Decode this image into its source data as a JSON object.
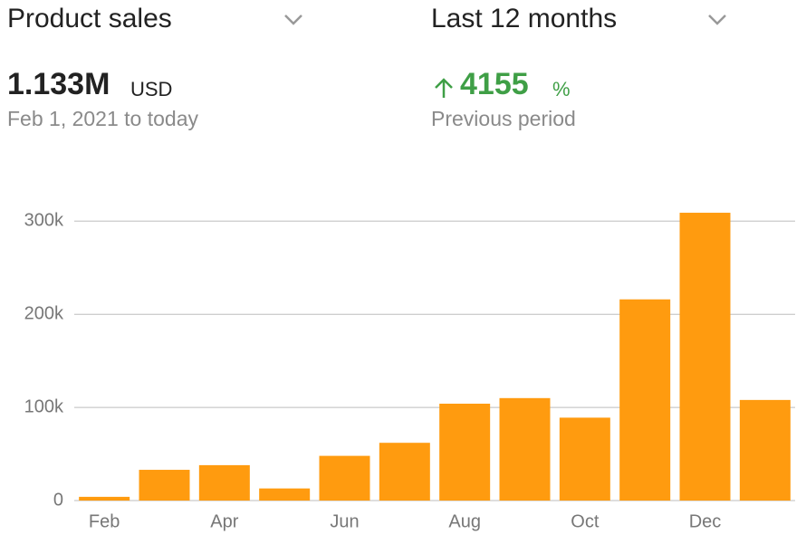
{
  "header": {
    "metric": "Product sales",
    "period": "Last 12 months"
  },
  "summary": {
    "total": "1.133M",
    "currency": "USD",
    "range": "Feb 1, 2021 to today",
    "change": "4155",
    "change_unit": "%",
    "comparison": "Previous period"
  },
  "chart_data": {
    "type": "bar",
    "categories": [
      "Feb",
      null,
      "Apr",
      null,
      "Jun",
      null,
      "Aug",
      null,
      "Oct",
      null,
      "Dec",
      null
    ],
    "values": [
      4000,
      33000,
      38000,
      13000,
      48000,
      62000,
      104000,
      110000,
      89000,
      216000,
      309000,
      108000
    ],
    "color": "#ff9b0f",
    "ylim": [
      0,
      310000
    ],
    "yticks": [
      0,
      {
        "value": 100000,
        "label": "100k"
      },
      {
        "value": 200000,
        "label": "200k"
      },
      {
        "value": 300000,
        "label": "300k"
      }
    ],
    "grid": true
  }
}
